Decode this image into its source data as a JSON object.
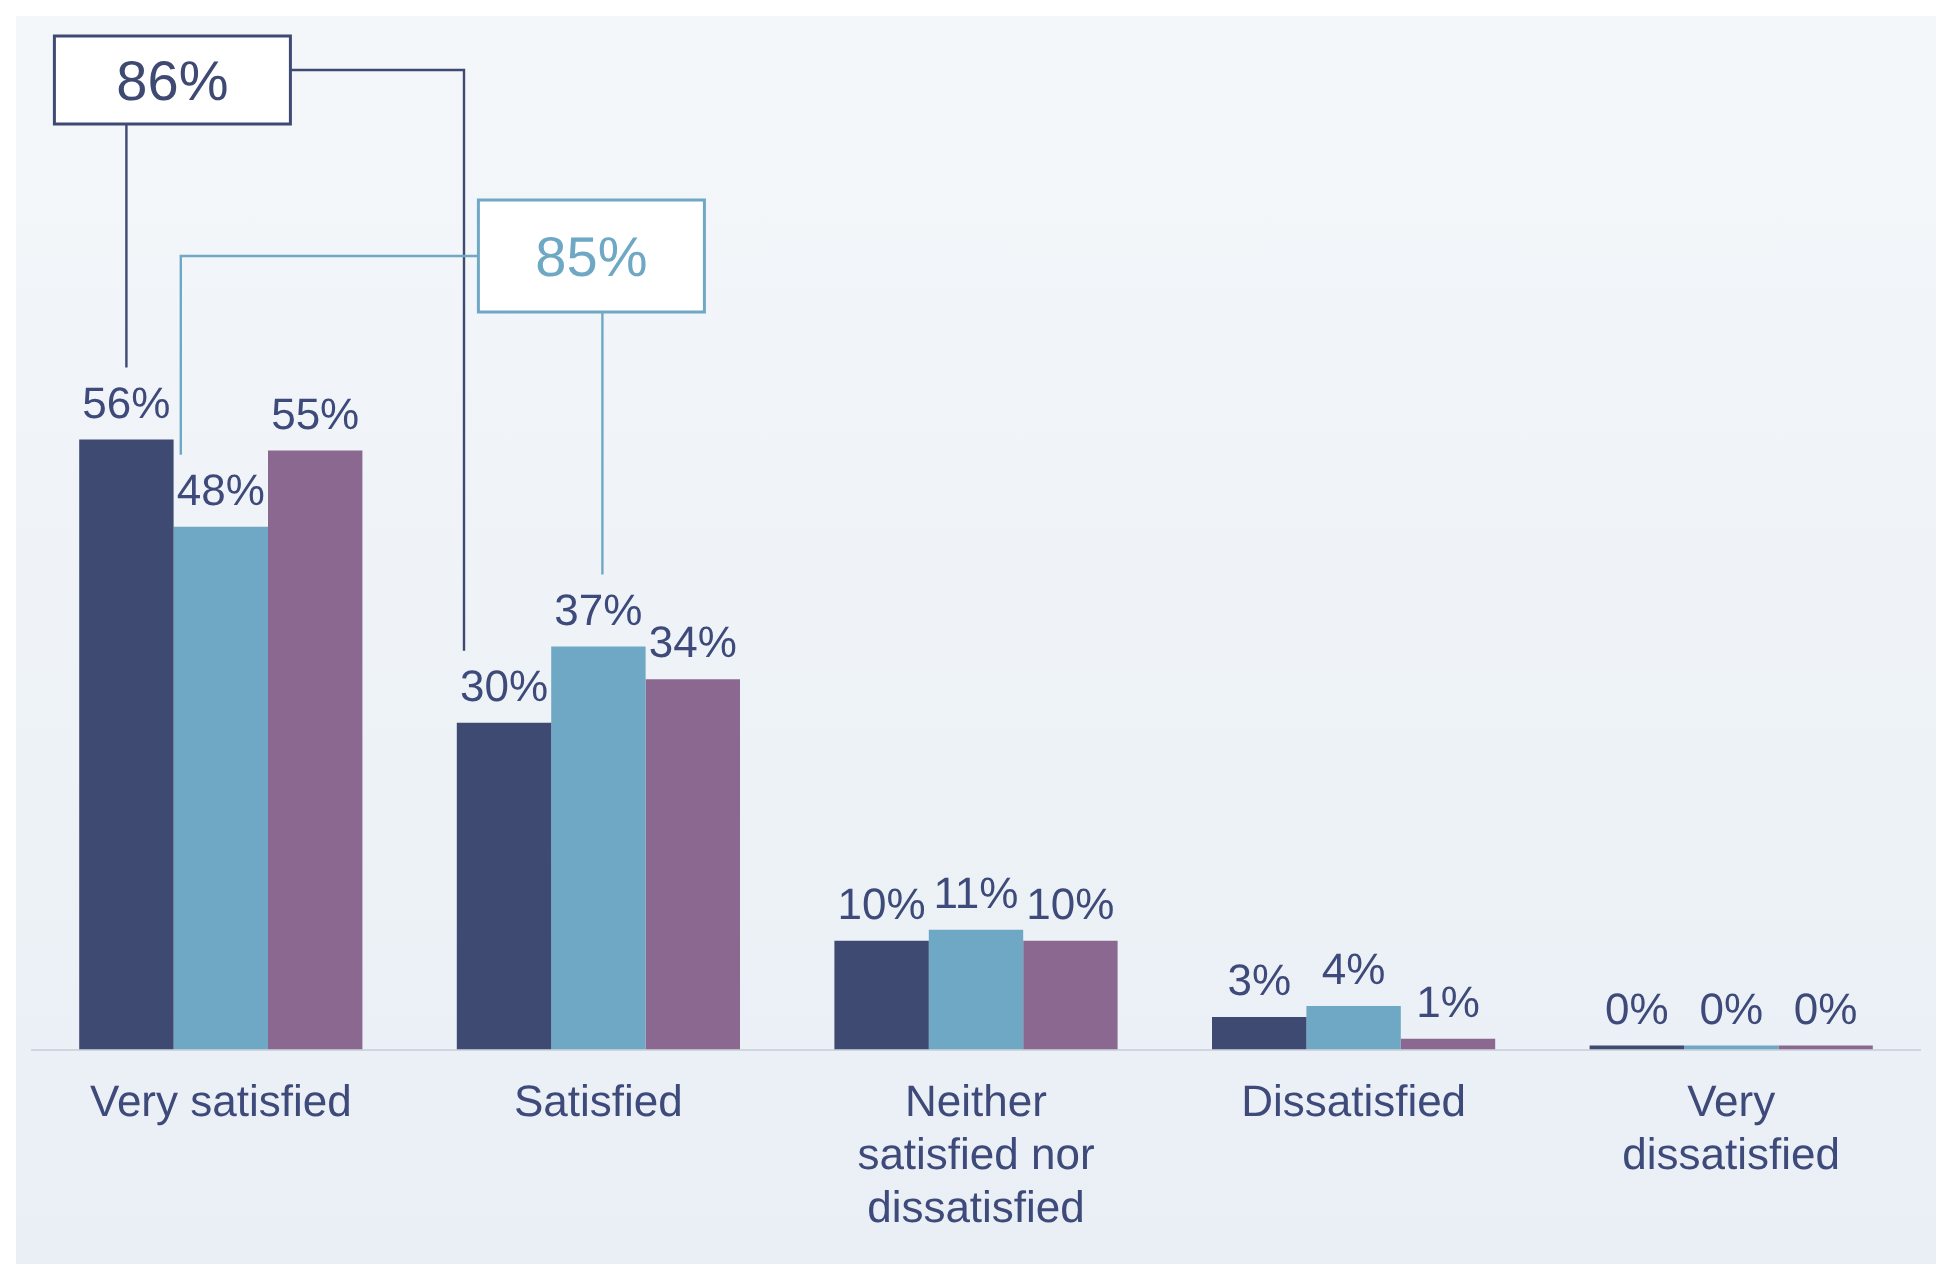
{
  "chart_data": {
    "type": "bar",
    "categories": [
      "Very satisfied",
      "Satisfied",
      "Neither satisfied nor dissatisfied",
      "Dissatisfied",
      "Very dissatisfied"
    ],
    "series": [
      {
        "color": "#3f4a72",
        "values": [
          56,
          30,
          10,
          3,
          0
        ],
        "value_labels": [
          "56%",
          "30%",
          "10%",
          "3%",
          "0%"
        ]
      },
      {
        "color": "#6fa8c4",
        "values": [
          48,
          37,
          11,
          4,
          0
        ],
        "value_labels": [
          "48%",
          "37%",
          "11%",
          "4%",
          "0%"
        ]
      },
      {
        "color": "#8b6890",
        "values": [
          55,
          34,
          10,
          1,
          0
        ],
        "value_labels": [
          "55%",
          "34%",
          "10%",
          "1%",
          "0%"
        ]
      }
    ],
    "annotations": [
      "86%",
      "85%"
    ],
    "grid": false,
    "legend": false
  }
}
